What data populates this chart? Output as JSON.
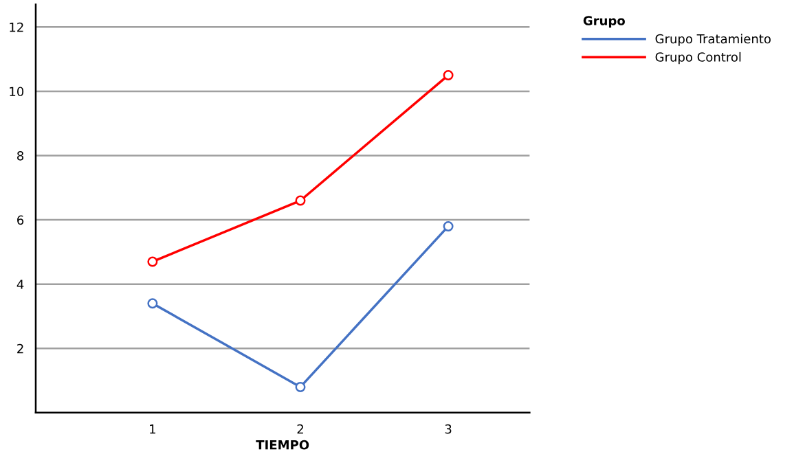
{
  "chart_data": {
    "type": "line",
    "xlabel": "TIEMPO",
    "legend_title": "Grupo",
    "categories": [
      "1",
      "2",
      "3"
    ],
    "series": [
      {
        "name": "Grupo Tratamiento",
        "color": "#4472c4",
        "values": [
          3.4,
          0.8,
          5.8
        ]
      },
      {
        "name": "Grupo Control",
        "color": "#ff0000",
        "values": [
          4.7,
          6.6,
          10.5
        ]
      }
    ],
    "ylim": [
      0,
      12.7
    ],
    "yticks": [
      2,
      4,
      6,
      8,
      10,
      12
    ],
    "grid": "y",
    "legend": "top right",
    "marker": "circle",
    "line_style": "solid"
  }
}
